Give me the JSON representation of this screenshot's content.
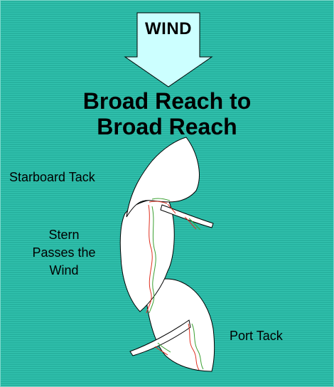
{
  "wind": {
    "label": "WIND"
  },
  "title": {
    "line1": "Broad Reach to",
    "line2": "Broad Reach"
  },
  "labels": {
    "starboard_tack": "Starboard Tack",
    "stern_line1": "Stern",
    "stern_line2": "Passes the",
    "stern_line3": "Wind",
    "port_tack": "Port Tack"
  },
  "colors": {
    "background": "#2fbfab",
    "arrow_fill": "#ccffff",
    "sail_fill": "#ffffff",
    "outline": "#000000",
    "telltale_red": "#e03020",
    "telltale_green": "#3aa030"
  }
}
